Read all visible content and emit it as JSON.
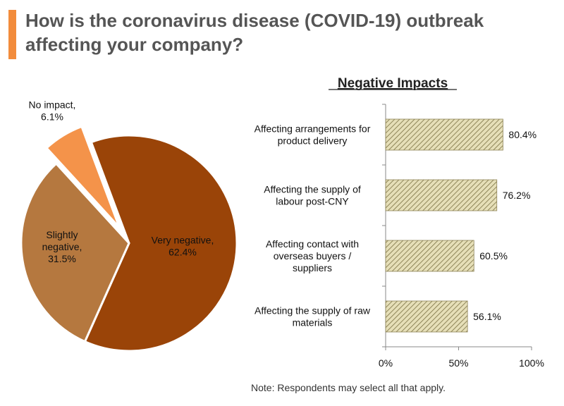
{
  "title": "How is the coronavirus disease (COVID-19) outbreak affecting your company?",
  "accent_color": "#F28C3C",
  "note": "Note: Respondents may select all that apply.",
  "chart_data": [
    {
      "type": "pie",
      "slices": [
        {
          "label": [
            "Very negative,",
            "62.4%"
          ],
          "value": 62.4,
          "color": "#9A4408"
        },
        {
          "label": [
            "Slightly",
            "negative,",
            "31.5%"
          ],
          "value": 31.5,
          "color": "#B5783F"
        },
        {
          "label": [
            "No impact,",
            "6.1%"
          ],
          "value": 6.1,
          "color": "#F4934A",
          "exploded": true
        }
      ]
    },
    {
      "type": "bar",
      "orientation": "horizontal",
      "title": "Negative Impacts",
      "categories": [
        [
          "Affecting arrangements for",
          "product delivery"
        ],
        [
          "Affecting the supply of",
          "labour post-CNY"
        ],
        [
          "Affecting contact with",
          "overseas buyers /",
          "suppliers"
        ],
        [
          "Affecting the supply of raw",
          "materials"
        ]
      ],
      "values": [
        80.4,
        76.2,
        60.5,
        56.1
      ],
      "value_labels": [
        "80.4%",
        "76.2%",
        "60.5%",
        "56.1%"
      ],
      "xlim": [
        0,
        100
      ],
      "x_ticks": [
        0,
        50,
        100
      ],
      "x_tick_labels": [
        "0%",
        "50%",
        "100%"
      ],
      "bar_pattern": "diagonal-hatch",
      "bar_color": "#C9C08A"
    }
  ]
}
